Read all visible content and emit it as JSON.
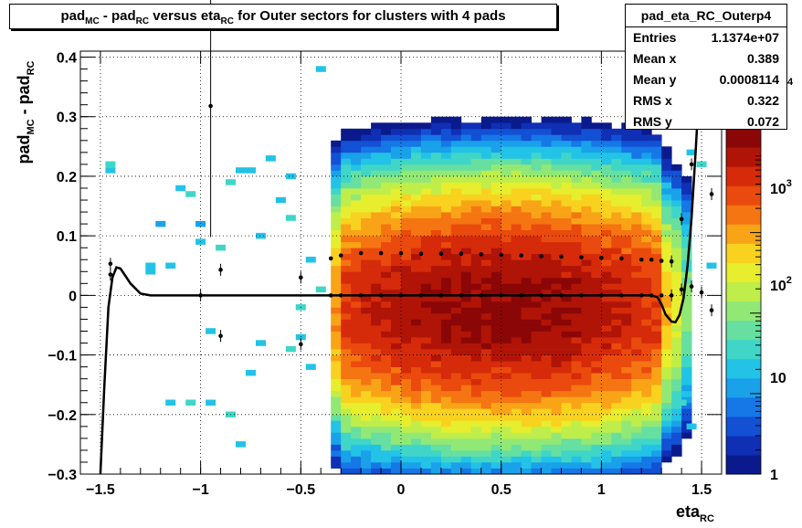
{
  "title": {
    "p1": "pad",
    "s1": "MC",
    "p2": " - pad",
    "s2": "RC",
    "p3": " versus eta",
    "s3": "RC",
    "p4": " for Outer sectors for clusters with 4 pads"
  },
  "stats": {
    "name": "pad_eta_RC_Outerp4",
    "rows": [
      {
        "label": "Entries",
        "value": "1.1374e+07"
      },
      {
        "label": "Mean x",
        "value": "0.389"
      },
      {
        "label": "Mean y",
        "value": "0.0008114"
      },
      {
        "label": "RMS x",
        "value": "0.322"
      },
      {
        "label": "RMS y",
        "value": "0.072"
      }
    ]
  },
  "axis_labels": {
    "y": {
      "base1": "pad",
      "sub1": "MC",
      "mid": " - pad",
      "sub2": "RC"
    },
    "x": {
      "base": "eta",
      "sub": "RC"
    }
  },
  "colorbar": {
    "labels": [
      {
        "key": "1",
        "text": "1"
      },
      {
        "key": "10",
        "text": "10"
      },
      {
        "key": "100",
        "base": "10",
        "exp": "2"
      },
      {
        "key": "1000",
        "base": "10",
        "exp": "3"
      },
      {
        "key": "10000",
        "exp": "4"
      }
    ],
    "palette": [
      "#0a1a8c",
      "#0f2fb4",
      "#1250d4",
      "#1677e6",
      "#19a1ea",
      "#22c3e6",
      "#3fd6c8",
      "#66dfa0",
      "#92e875",
      "#bfee4a",
      "#e6ee2e",
      "#f8d21f",
      "#f9a417",
      "#f57512",
      "#ea4a0d",
      "#d52b0a",
      "#b01407",
      "#8b0707"
    ]
  },
  "chart_data": {
    "type": "heatmap",
    "title": "pad_MC - pad_RC versus eta_RC for Outer sectors for clusters with 4 pads",
    "xlabel": "eta_RC",
    "ylabel": "pad_MC - pad_RC",
    "xlim": [
      -1.6,
      1.6
    ],
    "ylim": [
      -0.3,
      0.41
    ],
    "x_ticks": [
      "-1.5",
      "-1",
      "-0.5",
      "0",
      "0.5",
      "1",
      "1.5"
    ],
    "y_ticks": [
      "-0.3",
      "-0.2",
      "-0.1",
      "0",
      "0.1",
      "0.2",
      "0.3",
      "0.4"
    ],
    "z_scale": "log",
    "zlim": [
      1,
      20000
    ],
    "grid": true,
    "density_model": {
      "bulk_eta_range": [
        -0.35,
        1.45
      ],
      "bulk_eta_center": 0.5,
      "bulk_dy_center": -0.02,
      "peak_count": 15000
    },
    "sparse_cells": [
      [
        -1.45,
        0.22,
        30
      ],
      [
        -1.45,
        0.21,
        20
      ],
      [
        -1.25,
        0.05,
        20
      ],
      [
        -1.25,
        0.04,
        20
      ],
      [
        -1.2,
        0.12,
        10
      ],
      [
        -1.15,
        0.05,
        20
      ],
      [
        -1.1,
        0.18,
        20
      ],
      [
        -1.05,
        0.17,
        30
      ],
      [
        -1.0,
        0.09,
        20
      ],
      [
        -1.0,
        0.12,
        10
      ],
      [
        -0.95,
        -0.06,
        20
      ],
      [
        -0.9,
        0.08,
        30
      ],
      [
        -0.85,
        0.19,
        30
      ],
      [
        -0.8,
        0.21,
        20
      ],
      [
        -0.75,
        0.21,
        20
      ],
      [
        -0.7,
        0.1,
        20
      ],
      [
        -0.65,
        0.23,
        20
      ],
      [
        -0.6,
        0.16,
        20
      ],
      [
        -0.55,
        0.13,
        30
      ],
      [
        -0.55,
        0.2,
        20
      ],
      [
        -1.15,
        -0.18,
        20
      ],
      [
        -1.05,
        -0.18,
        30
      ],
      [
        -0.95,
        -0.18,
        20
      ],
      [
        -0.85,
        -0.2,
        30
      ],
      [
        -0.8,
        -0.25,
        20
      ],
      [
        -0.75,
        -0.13,
        20
      ],
      [
        -0.7,
        -0.08,
        20
      ],
      [
        -0.55,
        -0.09,
        30
      ],
      [
        -0.5,
        -0.02,
        30
      ],
      [
        -0.5,
        -0.07,
        20
      ],
      [
        -0.45,
        0.06,
        20
      ],
      [
        -0.45,
        -0.12,
        20
      ],
      [
        -0.4,
        0.38,
        20
      ],
      [
        -0.4,
        0.01,
        30
      ],
      [
        1.4,
        -0.18,
        30
      ],
      [
        1.45,
        -0.22,
        20
      ],
      [
        1.45,
        0.24,
        20
      ],
      [
        1.5,
        0.22,
        30
      ],
      [
        1.55,
        0.05,
        20
      ]
    ],
    "series": [
      {
        "name": "mean profile",
        "x": [
          -1.45,
          -1.0,
          -0.9,
          -0.5,
          -0.35,
          -0.3,
          -0.2,
          -0.1,
          0,
          0.1,
          0.2,
          0.3,
          0.4,
          0.5,
          0.6,
          0.7,
          0.8,
          0.9,
          1.0,
          1.1,
          1.2,
          1.25,
          1.3,
          1.35,
          1.4,
          1.45,
          1.5,
          1.55
        ],
        "y": [
          0.035,
          0.0,
          -0.068,
          -0.082,
          0.0,
          0.0,
          0.0,
          0.0,
          0.0,
          0.0,
          0.0,
          0.0,
          0.0,
          0.0,
          0.0,
          0.0,
          0.0,
          0.0,
          0.0,
          0.0,
          0.0,
          0.0,
          0.0,
          0.0,
          0.01,
          0.015,
          0.005,
          -0.025
        ]
      },
      {
        "name": "rms profile",
        "x": [
          -1.45,
          -0.95,
          -0.9,
          -0.5,
          -0.35,
          -0.3,
          -0.2,
          -0.1,
          0,
          0.1,
          0.2,
          0.3,
          0.4,
          0.5,
          0.6,
          0.7,
          0.8,
          0.9,
          1.0,
          1.1,
          1.2,
          1.25,
          1.3,
          1.35,
          1.4,
          1.45,
          1.55
        ],
        "y": [
          0.053,
          0.318,
          0.043,
          0.03,
          0.062,
          0.067,
          0.071,
          0.071,
          0.071,
          0.07,
          0.07,
          0.07,
          0.069,
          0.068,
          0.067,
          0.066,
          0.065,
          0.064,
          0.063,
          0.062,
          0.06,
          0.06,
          0.058,
          0.057,
          0.128,
          0.22,
          0.17
        ]
      },
      {
        "name": "fit",
        "x": [
          -1.5,
          -1.48,
          -1.46,
          -1.44,
          -1.42,
          -1.4,
          -1.38,
          -1.35,
          -1.3,
          -1.25,
          -1.2,
          -1.0,
          -0.5,
          0.0,
          0.5,
          1.0,
          1.2,
          1.25,
          1.28,
          1.3,
          1.32,
          1.35,
          1.37,
          1.39,
          1.41,
          1.43,
          1.45,
          1.47,
          1.49,
          1.5
        ],
        "y": [
          -0.3,
          -0.15,
          -0.02,
          0.03,
          0.047,
          0.045,
          0.035,
          0.02,
          0.003,
          0.0,
          0.0,
          0.0,
          0.0,
          0.0,
          0.0,
          0.0,
          0.0,
          0.0,
          -0.003,
          -0.015,
          -0.032,
          -0.044,
          -0.045,
          -0.033,
          -0.005,
          0.05,
          0.13,
          0.24,
          0.36,
          0.42
        ]
      }
    ]
  }
}
